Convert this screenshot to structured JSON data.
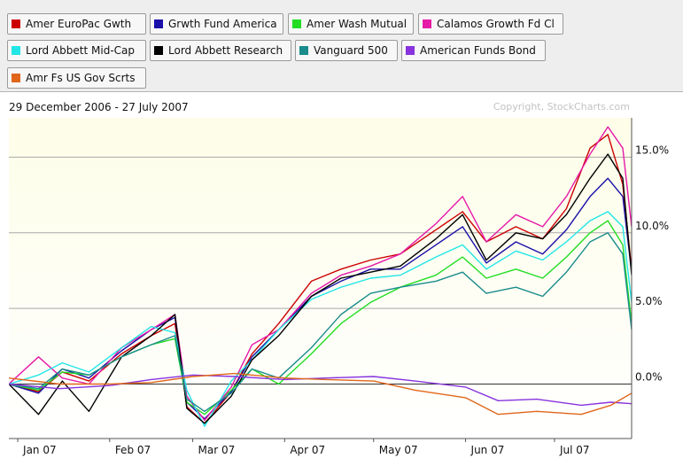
{
  "legend": {
    "items": [
      {
        "label": "Amer EuroPac Gwth",
        "color": "#cc0000"
      },
      {
        "label": "Grwth Fund America",
        "color": "#1a0fa8"
      },
      {
        "label": "Amer Wash Mutual",
        "color": "#22dd22"
      },
      {
        "label": "Calamos Growth Fd Cl",
        "color": "#e61aa8"
      },
      {
        "label": "Lord Abbett Mid-Cap",
        "color": "#22e6e6"
      },
      {
        "label": "Lord Abbett Research",
        "color": "#000000"
      },
      {
        "label": "Vanguard 500",
        "color": "#1a8c8c"
      },
      {
        "label": "American Funds Bond",
        "color": "#8833dd"
      },
      {
        "label": "Amr Fs US Gov Scrts",
        "color": "#e0661a"
      }
    ]
  },
  "header": {
    "date_range": "29 December 2006 - 27 July 2007",
    "copyright": "Copyright, StockCharts.com"
  },
  "chart_data": {
    "type": "line",
    "x_range": [
      "2006-12-29",
      "2007-07-27"
    ],
    "ylim": [
      -3.6,
      17.6
    ],
    "y_ticks": [
      0,
      5,
      10,
      15
    ],
    "y_tick_labels": [
      "0.0%",
      "5.0%",
      "10.0%",
      "15.0%"
    ],
    "x_tick_labels": [
      "Jan 07",
      "Feb 07",
      "Mar 07",
      "Apr 07",
      "May 07",
      "Jun 07",
      "Jul 07"
    ],
    "x_tick_dates": [
      "2007-01-01",
      "2007-02-01",
      "2007-03-01",
      "2007-04-01",
      "2007-05-01",
      "2007-06-01",
      "2007-07-01"
    ],
    "grid": true,
    "background_gradient": [
      "#fdfde8",
      "#ffffff"
    ],
    "series": [
      {
        "name": "Amer EuroPac Gwth",
        "color": "#cc0000",
        "points": [
          [
            "2006-12-29",
            0
          ],
          [
            "2007-01-08",
            -0.5
          ],
          [
            "2007-01-16",
            0.8
          ],
          [
            "2007-01-25",
            0.2
          ],
          [
            "2007-02-05",
            2.0
          ],
          [
            "2007-02-15",
            3.2
          ],
          [
            "2007-02-23",
            4.0
          ],
          [
            "2007-02-27",
            -1.5
          ],
          [
            "2007-03-05",
            -2.6
          ],
          [
            "2007-03-14",
            -0.5
          ],
          [
            "2007-03-21",
            2.0
          ],
          [
            "2007-03-30",
            4.0
          ],
          [
            "2007-04-10",
            6.8
          ],
          [
            "2007-04-20",
            7.6
          ],
          [
            "2007-04-30",
            8.2
          ],
          [
            "2007-05-10",
            8.6
          ],
          [
            "2007-05-22",
            10.2
          ],
          [
            "2007-05-31",
            11.4
          ],
          [
            "2007-06-08",
            9.4
          ],
          [
            "2007-06-18",
            10.4
          ],
          [
            "2007-06-27",
            9.6
          ],
          [
            "2007-07-05",
            11.6
          ],
          [
            "2007-07-13",
            15.6
          ],
          [
            "2007-07-19",
            16.5
          ],
          [
            "2007-07-24",
            13.2
          ],
          [
            "2007-07-27",
            7.6
          ]
        ]
      },
      {
        "name": "Grwth Fund America",
        "color": "#1a0fa8",
        "points": [
          [
            "2006-12-29",
            0
          ],
          [
            "2007-01-08",
            -0.6
          ],
          [
            "2007-01-16",
            1.0
          ],
          [
            "2007-01-25",
            0.4
          ],
          [
            "2007-02-05",
            2.2
          ],
          [
            "2007-02-15",
            3.6
          ],
          [
            "2007-02-23",
            4.4
          ],
          [
            "2007-02-27",
            -1.2
          ],
          [
            "2007-03-05",
            -2.3
          ],
          [
            "2007-03-14",
            -0.5
          ],
          [
            "2007-03-21",
            1.8
          ],
          [
            "2007-03-30",
            3.6
          ],
          [
            "2007-04-10",
            5.8
          ],
          [
            "2007-04-20",
            6.8
          ],
          [
            "2007-04-30",
            7.6
          ],
          [
            "2007-05-10",
            7.6
          ],
          [
            "2007-05-22",
            9.2
          ],
          [
            "2007-05-31",
            10.4
          ],
          [
            "2007-06-08",
            8.0
          ],
          [
            "2007-06-18",
            9.4
          ],
          [
            "2007-06-27",
            8.6
          ],
          [
            "2007-07-05",
            10.2
          ],
          [
            "2007-07-13",
            12.4
          ],
          [
            "2007-07-19",
            13.6
          ],
          [
            "2007-07-24",
            12.4
          ],
          [
            "2007-07-27",
            7.4
          ]
        ]
      },
      {
        "name": "Amer Wash Mutual",
        "color": "#22dd22",
        "points": [
          [
            "2006-12-29",
            0
          ],
          [
            "2007-01-08",
            -0.4
          ],
          [
            "2007-01-16",
            0.8
          ],
          [
            "2007-01-25",
            0.6
          ],
          [
            "2007-02-05",
            1.8
          ],
          [
            "2007-02-15",
            2.6
          ],
          [
            "2007-02-23",
            3.0
          ],
          [
            "2007-02-27",
            -1.2
          ],
          [
            "2007-03-05",
            -2.0
          ],
          [
            "2007-03-14",
            -0.4
          ],
          [
            "2007-03-21",
            1.0
          ],
          [
            "2007-03-30",
            0.0
          ],
          [
            "2007-04-10",
            2.0
          ],
          [
            "2007-04-20",
            4.0
          ],
          [
            "2007-04-30",
            5.4
          ],
          [
            "2007-05-10",
            6.4
          ],
          [
            "2007-05-22",
            7.2
          ],
          [
            "2007-05-31",
            8.4
          ],
          [
            "2007-06-08",
            7.0
          ],
          [
            "2007-06-18",
            7.6
          ],
          [
            "2007-06-27",
            7.0
          ],
          [
            "2007-07-05",
            8.4
          ],
          [
            "2007-07-13",
            10.0
          ],
          [
            "2007-07-19",
            10.8
          ],
          [
            "2007-07-24",
            9.2
          ],
          [
            "2007-07-27",
            4.0
          ]
        ]
      },
      {
        "name": "Calamos Growth Fd Cl",
        "color": "#e61aa8",
        "points": [
          [
            "2006-12-29",
            0
          ],
          [
            "2007-01-08",
            1.8
          ],
          [
            "2007-01-16",
            0.4
          ],
          [
            "2007-01-25",
            0.0
          ],
          [
            "2007-02-05",
            2.4
          ],
          [
            "2007-02-15",
            3.6
          ],
          [
            "2007-02-23",
            4.6
          ],
          [
            "2007-02-27",
            -0.8
          ],
          [
            "2007-03-05",
            -2.4
          ],
          [
            "2007-03-14",
            -0.2
          ],
          [
            "2007-03-21",
            2.6
          ],
          [
            "2007-03-30",
            3.6
          ],
          [
            "2007-04-10",
            6.0
          ],
          [
            "2007-04-20",
            7.2
          ],
          [
            "2007-04-30",
            7.8
          ],
          [
            "2007-05-10",
            8.6
          ],
          [
            "2007-05-22",
            10.6
          ],
          [
            "2007-05-31",
            12.4
          ],
          [
            "2007-06-08",
            9.4
          ],
          [
            "2007-06-18",
            11.2
          ],
          [
            "2007-06-27",
            10.4
          ],
          [
            "2007-07-05",
            12.4
          ],
          [
            "2007-07-13",
            15.2
          ],
          [
            "2007-07-19",
            17.0
          ],
          [
            "2007-07-24",
            15.6
          ],
          [
            "2007-07-27",
            10.4
          ]
        ]
      },
      {
        "name": "Lord Abbett Mid-Cap",
        "color": "#22e6e6",
        "points": [
          [
            "2006-12-29",
            0
          ],
          [
            "2007-01-08",
            0.6
          ],
          [
            "2007-01-16",
            1.4
          ],
          [
            "2007-01-25",
            0.8
          ],
          [
            "2007-02-05",
            2.4
          ],
          [
            "2007-02-15",
            3.8
          ],
          [
            "2007-02-23",
            3.4
          ],
          [
            "2007-02-27",
            -0.4
          ],
          [
            "2007-03-05",
            -2.8
          ],
          [
            "2007-03-14",
            0.2
          ],
          [
            "2007-03-21",
            1.6
          ],
          [
            "2007-03-30",
            3.6
          ],
          [
            "2007-04-10",
            5.6
          ],
          [
            "2007-04-20",
            6.4
          ],
          [
            "2007-04-30",
            7.0
          ],
          [
            "2007-05-10",
            7.2
          ],
          [
            "2007-05-22",
            8.4
          ],
          [
            "2007-05-31",
            9.2
          ],
          [
            "2007-06-08",
            7.6
          ],
          [
            "2007-06-18",
            8.8
          ],
          [
            "2007-06-27",
            8.2
          ],
          [
            "2007-07-05",
            9.4
          ],
          [
            "2007-07-13",
            10.8
          ],
          [
            "2007-07-19",
            11.4
          ],
          [
            "2007-07-24",
            10.4
          ],
          [
            "2007-07-27",
            5.4
          ]
        ]
      },
      {
        "name": "Lord Abbett Research",
        "color": "#000000",
        "points": [
          [
            "2006-12-29",
            0
          ],
          [
            "2007-01-08",
            -2.0
          ],
          [
            "2007-01-16",
            0.2
          ],
          [
            "2007-01-25",
            -1.8
          ],
          [
            "2007-02-05",
            1.8
          ],
          [
            "2007-02-15",
            3.2
          ],
          [
            "2007-02-23",
            4.6
          ],
          [
            "2007-02-27",
            -1.6
          ],
          [
            "2007-03-05",
            -2.6
          ],
          [
            "2007-03-14",
            -0.8
          ],
          [
            "2007-03-21",
            1.6
          ],
          [
            "2007-03-30",
            3.2
          ],
          [
            "2007-04-10",
            5.8
          ],
          [
            "2007-04-20",
            7.0
          ],
          [
            "2007-04-30",
            7.4
          ],
          [
            "2007-05-10",
            7.8
          ],
          [
            "2007-05-22",
            9.6
          ],
          [
            "2007-05-31",
            11.2
          ],
          [
            "2007-06-08",
            8.2
          ],
          [
            "2007-06-18",
            10.0
          ],
          [
            "2007-06-27",
            9.6
          ],
          [
            "2007-07-05",
            11.2
          ],
          [
            "2007-07-13",
            13.6
          ],
          [
            "2007-07-19",
            15.2
          ],
          [
            "2007-07-24",
            13.6
          ],
          [
            "2007-07-27",
            7.2
          ]
        ]
      },
      {
        "name": "Vanguard 500",
        "color": "#1a8c8c",
        "points": [
          [
            "2006-12-29",
            0
          ],
          [
            "2007-01-08",
            -0.3
          ],
          [
            "2007-01-16",
            1.0
          ],
          [
            "2007-01-25",
            0.6
          ],
          [
            "2007-02-05",
            1.8
          ],
          [
            "2007-02-15",
            2.6
          ],
          [
            "2007-02-23",
            3.2
          ],
          [
            "2007-02-27",
            -1.0
          ],
          [
            "2007-03-05",
            -1.8
          ],
          [
            "2007-03-14",
            -0.6
          ],
          [
            "2007-03-21",
            1.0
          ],
          [
            "2007-03-30",
            0.4
          ],
          [
            "2007-04-10",
            2.4
          ],
          [
            "2007-04-20",
            4.6
          ],
          [
            "2007-04-30",
            6.0
          ],
          [
            "2007-05-10",
            6.4
          ],
          [
            "2007-05-22",
            6.8
          ],
          [
            "2007-05-31",
            7.4
          ],
          [
            "2007-06-08",
            6.0
          ],
          [
            "2007-06-18",
            6.4
          ],
          [
            "2007-06-27",
            5.8
          ],
          [
            "2007-07-05",
            7.4
          ],
          [
            "2007-07-13",
            9.4
          ],
          [
            "2007-07-19",
            10.0
          ],
          [
            "2007-07-24",
            8.6
          ],
          [
            "2007-07-27",
            3.6
          ]
        ]
      },
      {
        "name": "American Funds Bond",
        "color": "#8833dd",
        "points": [
          [
            "2006-12-29",
            0
          ],
          [
            "2007-01-15",
            -0.3
          ],
          [
            "2007-02-01",
            -0.1
          ],
          [
            "2007-02-15",
            0.3
          ],
          [
            "2007-03-01",
            0.6
          ],
          [
            "2007-03-15",
            0.5
          ],
          [
            "2007-04-01",
            0.3
          ],
          [
            "2007-04-15",
            0.4
          ],
          [
            "2007-05-01",
            0.5
          ],
          [
            "2007-05-15",
            0.2
          ],
          [
            "2007-06-01",
            -0.2
          ],
          [
            "2007-06-12",
            -1.1
          ],
          [
            "2007-06-25",
            -1.0
          ],
          [
            "2007-07-10",
            -1.4
          ],
          [
            "2007-07-20",
            -1.2
          ],
          [
            "2007-07-27",
            -1.3
          ]
        ]
      },
      {
        "name": "Amr Fs US Gov Scrts",
        "color": "#e0661a",
        "points": [
          [
            "2006-12-29",
            0.4
          ],
          [
            "2007-01-15",
            0.0
          ],
          [
            "2007-02-01",
            0.0
          ],
          [
            "2007-02-15",
            0.1
          ],
          [
            "2007-03-01",
            0.5
          ],
          [
            "2007-03-15",
            0.7
          ],
          [
            "2007-04-01",
            0.4
          ],
          [
            "2007-04-15",
            0.3
          ],
          [
            "2007-05-01",
            0.2
          ],
          [
            "2007-05-15",
            -0.4
          ],
          [
            "2007-06-01",
            -0.9
          ],
          [
            "2007-06-12",
            -2.0
          ],
          [
            "2007-06-25",
            -1.8
          ],
          [
            "2007-07-10",
            -2.0
          ],
          [
            "2007-07-20",
            -1.4
          ],
          [
            "2007-07-27",
            -0.6
          ]
        ]
      }
    ]
  }
}
